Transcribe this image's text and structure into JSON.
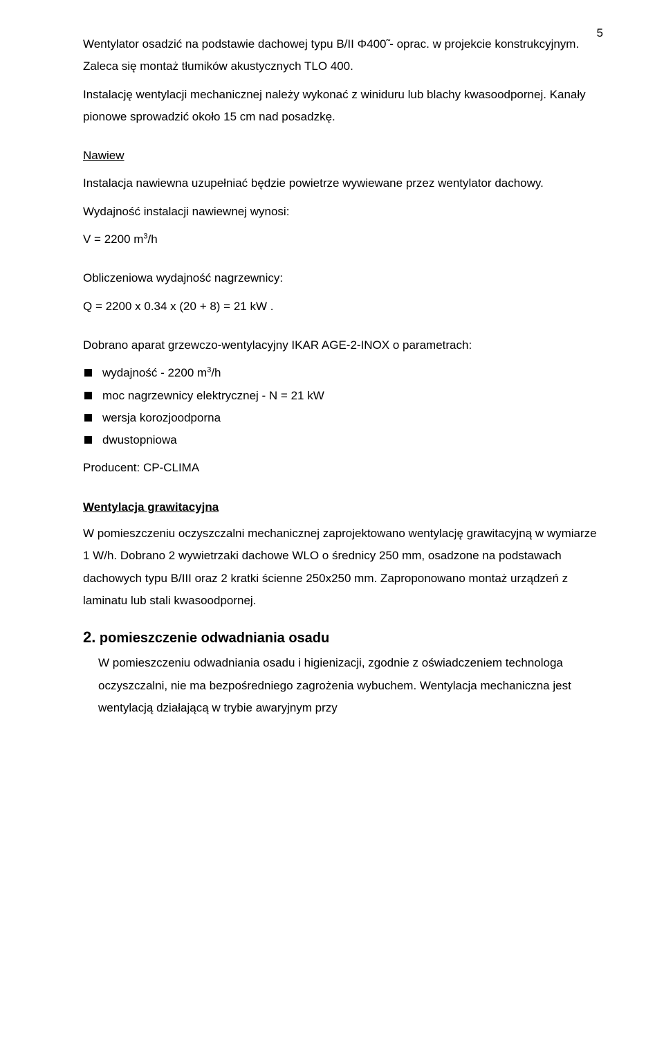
{
  "page_number": "5",
  "typography": {
    "body_fontsize_pt": 13,
    "heading_fontsize_pt": 15,
    "line_height": 1.9,
    "font_family": "Arial",
    "text_color": "#000000",
    "background_color": "#ffffff"
  },
  "intro": {
    "p1": "Wentylator osadzić na podstawie dachowej typu B/II Φ400̃ - oprac. w projekcie konstrukcyjnym. Zaleca się montaż tłumików akustycznych TLO 400.",
    "p2": "Instalację wentylacji mechanicznej należy wykonać z winiduru lub blachy kwasoodpornej. Kanały pionowe sprowadzić około 15 cm nad posadzkę."
  },
  "nawiew": {
    "title": "Nawiew",
    "p1": "Instalacja nawiewna uzupełniać będzie powietrze wywiewane przez wentylator dachowy.",
    "p2": "Wydajność instalacji  nawiewnej wynosi:",
    "v_prefix": "V = 2200 m",
    "v_sup": "3",
    "v_suffix": "/h"
  },
  "obliczeniowa": {
    "line1": "Obliczeniowa wydajność nagrzewnicy:",
    "line2": "Q = 2200 x 0.34 x (20 + 8) = 21 kW ."
  },
  "aparat": {
    "intro": "Dobrano aparat grzewczo-wentylacyjny IKAR AGE-2-INOX o parametrach:",
    "bullets": [
      {
        "prefix": "wydajność  - 2200 m",
        "sup": "3",
        "suffix": "/h"
      },
      {
        "prefix": "moc nagrzewnicy elektrycznej - N = 21 kW",
        "sup": "",
        "suffix": ""
      },
      {
        "prefix": "wersja korozjoodporna",
        "sup": "",
        "suffix": ""
      },
      {
        "prefix": "dwustopniowa",
        "sup": "",
        "suffix": ""
      }
    ],
    "producer": "Producent: CP-CLIMA"
  },
  "grawitacyjna": {
    "title": "Wentylacja grawitacyjna",
    "body": "W pomieszczeniu oczyszczalni mechanicznej zaprojektowano wentylację grawitacyjną w wymiarze 1 W/h. Dobrano 2 wywietrzaki dachowe WLO o średnicy 250 mm, osadzone na podstawach dachowych typu B/III oraz 2 kratki ścienne 250x250 mm. Zaproponowano montaż urządzeń z laminatu lub stali kwasoodpornej."
  },
  "section2": {
    "number": "2.",
    "title": " pomieszczenie odwadniania osadu",
    "body": "W pomieszczeniu odwadniania osadu i higienizacji, zgodnie z oświadczeniem technologa oczyszczalni, nie ma bezpośredniego zagrożenia wybuchem. Wentylacja mechaniczna jest wentylacją działającą w trybie awaryjnym przy"
  }
}
